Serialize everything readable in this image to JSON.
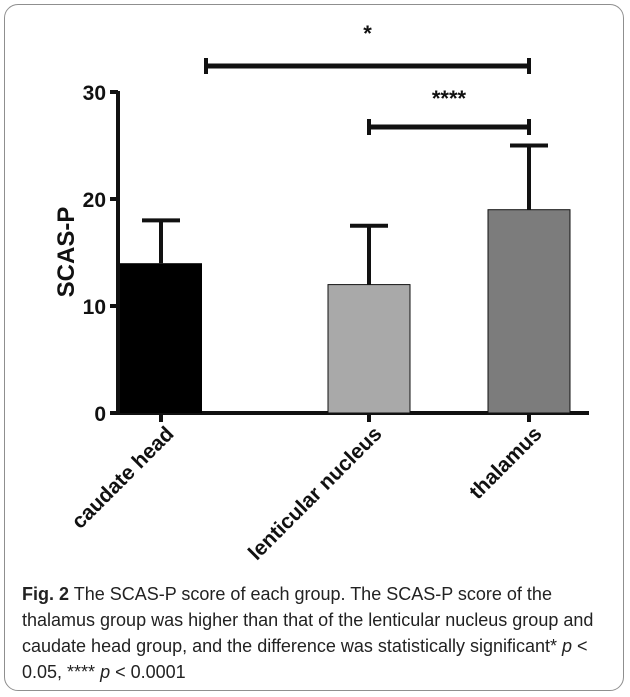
{
  "chart_data": {
    "type": "bar",
    "categories": [
      "caudate head",
      "lenticular nucleus",
      "thalamus"
    ],
    "values": [
      14,
      12,
      19
    ],
    "error_upper": [
      18,
      17.5,
      25
    ],
    "ylabel": "SCAS-P",
    "xlabel": "",
    "ylim": [
      0,
      30
    ],
    "yticks": [
      0,
      10,
      20,
      30
    ],
    "bar_colors": [
      "#000000",
      "#a9a9a9",
      "#7c7c7c"
    ],
    "significance": [
      {
        "from": 0,
        "to": 2,
        "label": "*"
      },
      {
        "from": 1,
        "to": 2,
        "label": "****"
      }
    ],
    "grid": false
  },
  "caption": {
    "fig_label": "Fig. 2",
    "text": "The SCAS-P score of each group. The SCAS-P score of the thalamus group was higher than that of the lenticular nucleus group and caudate head group, and the difference was statistically significant*",
    "p_var": "p",
    "p1_value": "< 0.05, ****",
    "p2_value": "< 0.0001"
  }
}
